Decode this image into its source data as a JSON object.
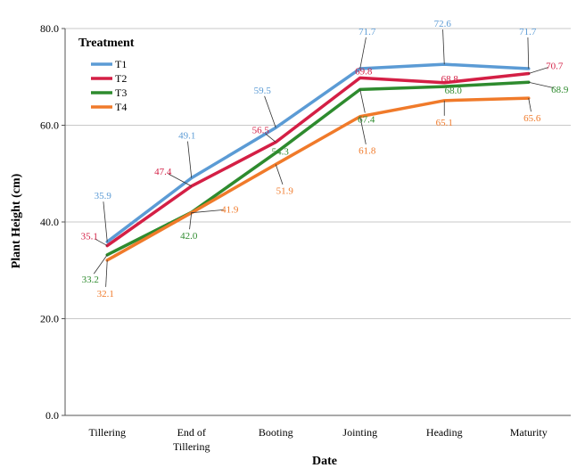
{
  "chart_data": {
    "type": "line",
    "categories": [
      "Tillering",
      "End of Tillering",
      "Booting",
      "Jointing",
      "Heading",
      "Maturity"
    ],
    "category_lines": [
      [
        "Tillering"
      ],
      [
        "End of",
        "Tillering"
      ],
      [
        "Booting"
      ],
      [
        "Jointing"
      ],
      [
        "Heading"
      ],
      [
        "Maturity"
      ]
    ],
    "series": [
      {
        "name": "T1",
        "color": "#5b9bd5",
        "values": [
          35.9,
          49.1,
          59.5,
          71.7,
          72.6,
          71.7
        ],
        "labels": [
          "35.9",
          "49.1",
          "59.5",
          "71.7",
          "72.6",
          "71.7"
        ]
      },
      {
        "name": "T2",
        "color": "#d41f45",
        "values": [
          35.1,
          47.4,
          56.5,
          69.8,
          68.8,
          70.7
        ],
        "labels": [
          "35.1",
          "47.4",
          "56.5",
          "69.8",
          "68.8",
          "70.7"
        ]
      },
      {
        "name": "T3",
        "color": "#2e8b2e",
        "values": [
          33.2,
          42.0,
          54.3,
          67.4,
          68.0,
          68.9
        ],
        "labels": [
          "33.2",
          "42.0",
          "54.3",
          "67.4",
          "68.0",
          "68.9"
        ]
      },
      {
        "name": "T4",
        "color": "#f07a2a",
        "values": [
          32.1,
          41.9,
          51.9,
          61.8,
          65.1,
          65.6
        ],
        "labels": [
          "32.1",
          "41.9",
          "51.9",
          "61.8",
          "65.1",
          "65.6"
        ]
      }
    ],
    "xlabel": "Date",
    "ylabel": "Plant Height (cm)",
    "ylim": [
      0,
      80
    ],
    "yticks": [
      0,
      20,
      40,
      60,
      80
    ],
    "ytick_labels": [
      "0.0",
      "20.0",
      "40.0",
      "60.0",
      "80.0"
    ],
    "grid": "horizontal",
    "legend_title": "Treatment",
    "legend_position": "top-left"
  }
}
